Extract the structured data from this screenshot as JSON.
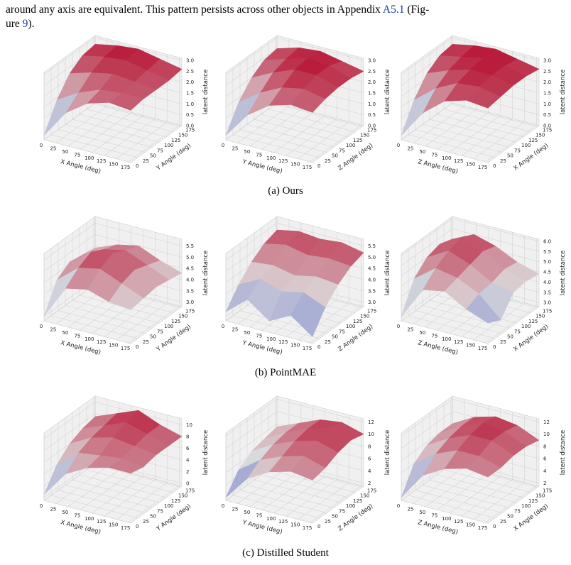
{
  "text": {
    "line1_a": "around any axis are equivalent. This pattern persists across other objects in Appendix ",
    "link1": "A5.1",
    "line1_b": " (Fig-",
    "line2_a": "ure ",
    "link2": "9",
    "line2_b": ")."
  },
  "angle_lim": [
    0,
    180
  ],
  "surface_angles": [
    0,
    45,
    90,
    135,
    180
  ],
  "figures": [
    {
      "caption": "(a) Ours",
      "plots": [
        {
          "x_label": "X Angle (deg)",
          "y_label": "Y Angle (deg)",
          "z_label": "latent distance",
          "xticks": [
            0,
            25,
            50,
            75,
            100,
            125,
            150,
            175
          ],
          "yticks": [
            0,
            25,
            50,
            75,
            100,
            125,
            150,
            175
          ],
          "zticks": [
            {
              "value": 0,
              "label": "0.0"
            },
            0.5,
            {
              "value": 1,
              "label": "1.0"
            },
            1.5,
            {
              "value": 2,
              "label": "2.0"
            },
            2.5,
            {
              "value": 3,
              "label": "3.0"
            }
          ],
          "zlim": [
            0,
            3.1
          ],
          "z": [
            [
              0.2,
              1.5,
              2.2,
              2.5,
              2.4
            ],
            [
              1.4,
              2.0,
              2.4,
              2.5,
              2.5
            ],
            [
              2.2,
              2.5,
              2.7,
              2.6,
              2.5
            ],
            [
              2.6,
              2.8,
              2.9,
              2.7,
              2.5
            ],
            [
              2.7,
              2.9,
              3.0,
              2.8,
              2.6
            ]
          ]
        },
        {
          "x_label": "Y Angle (deg)",
          "y_label": "Z Angle (deg)",
          "z_label": "latent distance",
          "xticks": [
            0,
            25,
            50,
            75,
            100,
            125,
            150,
            175
          ],
          "yticks": [
            0,
            25,
            50,
            75,
            100,
            125,
            150,
            175
          ],
          "zticks": [
            {
              "value": 0,
              "label": "0.0"
            },
            0.5,
            {
              "value": 1,
              "label": "1.0"
            },
            1.5,
            {
              "value": 2,
              "label": "2.0"
            },
            2.5,
            {
              "value": 3,
              "label": "3.0"
            }
          ],
          "zlim": [
            0,
            3.1
          ],
          "z": [
            [
              0.2,
              1.4,
              2.1,
              2.4,
              2.3
            ],
            [
              1.3,
              2.0,
              2.5,
              2.7,
              2.5
            ],
            [
              2.0,
              2.5,
              2.9,
              2.9,
              2.6
            ],
            [
              2.4,
              2.7,
              3.0,
              2.9,
              2.6
            ],
            [
              2.5,
              2.8,
              2.9,
              2.7,
              2.5
            ]
          ]
        },
        {
          "x_label": "Z Angle (deg)",
          "y_label": "X Angle (deg)",
          "z_label": "latent distance",
          "xticks": [
            0,
            25,
            50,
            75,
            100,
            125,
            150,
            175
          ],
          "yticks": [
            0,
            25,
            50,
            75,
            100,
            125,
            150,
            175
          ],
          "zticks": [
            {
              "value": 0,
              "label": "0.0"
            },
            0.5,
            {
              "value": 1,
              "label": "1.0"
            },
            1.5,
            {
              "value": 2,
              "label": "2.0"
            },
            2.5,
            {
              "value": 3,
              "label": "3.0"
            }
          ],
          "zlim": [
            0,
            3.1
          ],
          "z": [
            [
              0.2,
              1.5,
              2.3,
              2.6,
              2.5
            ],
            [
              1.4,
              2.2,
              2.7,
              2.8,
              2.6
            ],
            [
              2.2,
              2.6,
              2.9,
              2.9,
              2.7
            ],
            [
              2.6,
              2.8,
              3.0,
              2.9,
              2.7
            ],
            [
              2.7,
              2.9,
              3.0,
              2.8,
              2.6
            ]
          ]
        }
      ]
    },
    {
      "caption": "(b) PointMAE",
      "plots": [
        {
          "x_label": "X Angle (deg)",
          "y_label": "Y Angle (deg)",
          "z_label": "latent distance",
          "xticks": [
            0,
            25,
            50,
            75,
            100,
            125,
            150,
            175
          ],
          "yticks": [
            0,
            25,
            50,
            75,
            100,
            125,
            150,
            175
          ],
          "zticks": [
            {
              "value": 3,
              "label": "3.0"
            },
            3.5,
            {
              "value": 4,
              "label": "4.0"
            },
            4.5,
            {
              "value": 5,
              "label": "5.0"
            },
            5.5
          ],
          "zlim": [
            2.8,
            5.8
          ],
          "z": [
            [
              3.0,
              4.5,
              4.7,
              4.4,
              4.3
            ],
            [
              4.2,
              5.0,
              5.2,
              4.8,
              4.4
            ],
            [
              4.6,
              5.3,
              5.5,
              5.0,
              4.5
            ],
            [
              4.5,
              5.0,
              5.2,
              4.8,
              4.4
            ],
            [
              4.4,
              4.8,
              5.0,
              4.6,
              4.3
            ]
          ]
        },
        {
          "x_label": "Y Angle (deg)",
          "y_label": "Z Angle (deg)",
          "z_label": "latent distance",
          "xticks": [
            0,
            25,
            50,
            75,
            100,
            125,
            150,
            175
          ],
          "yticks": [
            0,
            25,
            50,
            75,
            100,
            125,
            150,
            175
          ],
          "zticks": [
            {
              "value": 3,
              "label": "3.0"
            },
            3.5,
            {
              "value": 4,
              "label": "4.0"
            },
            4.5,
            {
              "value": 5,
              "label": "5.0"
            },
            5.5
          ],
          "zlim": [
            2.8,
            5.8
          ],
          "z": [
            [
              3.2,
              4.0,
              3.3,
              3.8,
              3.1
            ],
            [
              4.0,
              4.5,
              4.2,
              4.4,
              4.0
            ],
            [
              4.6,
              4.7,
              4.5,
              4.7,
              4.6
            ],
            [
              5.0,
              5.2,
              5.0,
              5.1,
              5.0
            ],
            [
              5.2,
              5.4,
              5.3,
              5.4,
              5.2
            ]
          ]
        },
        {
          "x_label": "Z Angle (deg)",
          "y_label": "X Angle (deg)",
          "z_label": "latent distance",
          "xticks": [
            0,
            25,
            50,
            75,
            100,
            125,
            150,
            175
          ],
          "yticks": [
            0,
            25,
            50,
            75,
            100,
            125,
            150,
            175
          ],
          "zticks": [
            {
              "value": 3,
              "label": "3.0"
            },
            3.5,
            {
              "value": 4,
              "label": "4.0"
            },
            4.5,
            {
              "value": 5,
              "label": "5.0"
            },
            5.5,
            {
              "value": 6,
              "label": "6.0"
            }
          ],
          "zlim": [
            2.8,
            6.1
          ],
          "z": [
            [
              3.0,
              4.6,
              4.8,
              4.2,
              3.8
            ],
            [
              4.4,
              5.2,
              5.0,
              4.5,
              3.5
            ],
            [
              5.0,
              5.6,
              5.2,
              4.6,
              4.4
            ],
            [
              5.2,
              5.8,
              5.4,
              4.8,
              4.5
            ],
            [
              5.0,
              5.5,
              5.2,
              4.7,
              4.4
            ]
          ]
        }
      ]
    },
    {
      "caption": "(c) Distilled Student",
      "plots": [
        {
          "x_label": "X Angle (deg)",
          "y_label": "Y Angle (deg)",
          "z_label": "latent distance",
          "xticks": [
            0,
            25,
            50,
            75,
            100,
            125,
            150,
            175
          ],
          "yticks": [
            0,
            25,
            50,
            75,
            100,
            125,
            150,
            175
          ],
          "zticks": [
            0,
            2,
            4,
            6,
            8,
            10
          ],
          "zlim": [
            -0.5,
            11
          ],
          "z": [
            [
              0.5,
              5,
              7,
              8,
              8
            ],
            [
              4,
              7,
              7.5,
              8,
              7.5
            ],
            [
              6,
              8,
              9,
              8.5,
              8
            ],
            [
              7,
              8.5,
              10,
              9,
              8
            ],
            [
              7.5,
              9,
              10.5,
              9,
              8
            ]
          ]
        },
        {
          "x_label": "Y Angle (deg)",
          "y_label": "Z Angle (deg)",
          "z_label": "latent distance",
          "xticks": [
            0,
            25,
            50,
            75,
            100,
            125,
            150,
            175
          ],
          "yticks": [
            0,
            25,
            50,
            75,
            100,
            125,
            150,
            175
          ],
          "zticks": [
            2,
            4,
            6,
            8,
            10,
            12
          ],
          "zlim": [
            1.5,
            12.5
          ],
          "z": [
            [
              2,
              6,
              8,
              9,
              8.5
            ],
            [
              5,
              7.5,
              9,
              10,
              9
            ],
            [
              6.5,
              8.5,
              10,
              11,
              10
            ],
            [
              7,
              9,
              10.5,
              11.5,
              10.5
            ],
            [
              7.5,
              9,
              10.5,
              11,
              10
            ]
          ]
        },
        {
          "x_label": "Z Angle (deg)",
          "y_label": "X Angle (deg)",
          "z_label": "latent distance",
          "xticks": [
            0,
            25,
            50,
            75,
            100,
            125,
            150,
            175
          ],
          "yticks": [
            0,
            25,
            50,
            75,
            100,
            125,
            150,
            175
          ],
          "zticks": [
            2,
            4,
            6,
            8,
            10,
            12
          ],
          "zlim": [
            1.5,
            12.5
          ],
          "z": [
            [
              2,
              6.5,
              8.5,
              9.5,
              9
            ],
            [
              6,
              8.5,
              10,
              10,
              9
            ],
            [
              7.5,
              9.5,
              11,
              11,
              9.5
            ],
            [
              8,
              10,
              11.5,
              11,
              9.5
            ],
            [
              8,
              10,
              11,
              10.5,
              9
            ]
          ]
        }
      ]
    }
  ]
}
